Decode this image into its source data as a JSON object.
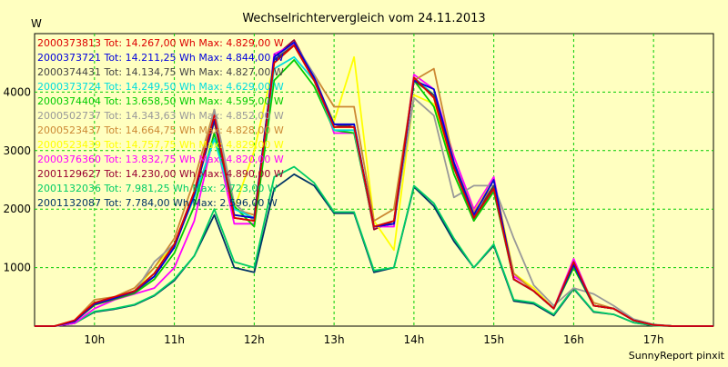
{
  "chart_data": {
    "type": "line",
    "title": "Wechselrichtervergleich vom 24.11.2013",
    "ylabel": "W",
    "credit": "SunnyReport pinxit",
    "ylim": [
      0,
      5000
    ],
    "xlim": [
      9.25,
      17.75
    ],
    "grid": true,
    "background": "#ffffc0",
    "grid_color": "#00cc00",
    "y_ticks": [
      1000,
      2000,
      3000,
      4000
    ],
    "x_ticks": [
      {
        "value": 10,
        "label": "10h"
      },
      {
        "value": 11,
        "label": "11h"
      },
      {
        "value": 12,
        "label": "12h"
      },
      {
        "value": 13,
        "label": "13h"
      },
      {
        "value": 14,
        "label": "14h"
      },
      {
        "value": 15,
        "label": "15h"
      },
      {
        "value": 16,
        "label": "16h"
      },
      {
        "value": 17,
        "label": "17h"
      }
    ],
    "x": [
      9.25,
      9.5,
      9.75,
      10.0,
      10.25,
      10.5,
      10.75,
      11.0,
      11.25,
      11.5,
      11.75,
      12.0,
      12.25,
      12.5,
      12.75,
      13.0,
      13.25,
      13.5,
      13.75,
      14.0,
      14.25,
      14.5,
      14.75,
      15.0,
      15.25,
      15.5,
      15.75,
      16.0,
      16.25,
      16.5,
      16.75,
      17.0,
      17.25,
      17.5,
      17.75
    ],
    "series": [
      {
        "name": "2000373813",
        "legend": "2000373813 Tot: 14.267,00 Wh Max: 4.829,00 W",
        "color": "#dd0000",
        "values": [
          0,
          0,
          100,
          400,
          500,
          600,
          900,
          1400,
          2300,
          3600,
          1850,
          1800,
          4500,
          4800,
          4200,
          3400,
          3400,
          1700,
          1800,
          4250,
          3900,
          2700,
          1850,
          2350,
          800,
          600,
          300,
          1100,
          350,
          300,
          100,
          20,
          0,
          0,
          0
        ]
      },
      {
        "name": "2000373721",
        "legend": "2000373721 Tot: 14.211,25 Wh Max: 4.844,00 W",
        "color": "#0000dd",
        "values": [
          0,
          0,
          80,
          380,
          480,
          600,
          850,
          1350,
          2250,
          3550,
          1900,
          1850,
          4600,
          4850,
          4250,
          3450,
          3450,
          1700,
          1750,
          4200,
          4050,
          2800,
          1900,
          2500,
          800,
          600,
          300,
          1050,
          350,
          300,
          100,
          20,
          0,
          0,
          0
        ]
      },
      {
        "name": "2000374431",
        "legend": "2000374431 Tot: 14.134,75 Wh Max: 4.827,00 W",
        "color": "#444444",
        "values": [
          0,
          0,
          80,
          370,
          470,
          580,
          850,
          1350,
          2250,
          3500,
          1900,
          1850,
          4550,
          4800,
          4200,
          3400,
          3450,
          1700,
          1750,
          4200,
          3950,
          2750,
          1850,
          2400,
          800,
          600,
          300,
          1050,
          350,
          300,
          100,
          20,
          0,
          0,
          0
        ]
      },
      {
        "name": "2000373724",
        "legend": "2000373724 Tot: 14.249,50 Wh Max: 4.629,00 W",
        "color": "#00dddd",
        "values": [
          0,
          0,
          90,
          390,
          490,
          600,
          900,
          1400,
          2200,
          3200,
          2000,
          1850,
          4400,
          4600,
          4200,
          3350,
          3350,
          1700,
          1800,
          4250,
          3950,
          2700,
          1850,
          2350,
          800,
          600,
          300,
          1100,
          350,
          300,
          100,
          20,
          0,
          0,
          0
        ]
      },
      {
        "name": "2000374404",
        "legend": "2000374404 Tot: 13.658,50 Wh Max: 4.595,00 W",
        "color": "#00cc00",
        "values": [
          0,
          0,
          80,
          360,
          460,
          560,
          800,
          1250,
          2050,
          3300,
          2050,
          1700,
          4200,
          4550,
          4100,
          3350,
          3300,
          1700,
          1750,
          4200,
          3750,
          2600,
          1800,
          2300,
          800,
          600,
          300,
          1000,
          350,
          300,
          100,
          20,
          0,
          0,
          0
        ]
      },
      {
        "name": "2000502737",
        "legend": "2000502737 Tot: 14.343,63 Wh Max: 4.852,00 W",
        "color": "#999999",
        "values": [
          0,
          0,
          80,
          370,
          470,
          580,
          1100,
          1400,
          2200,
          3700,
          2100,
          1800,
          4550,
          4850,
          4300,
          3400,
          3450,
          1700,
          1750,
          3900,
          3600,
          2200,
          2400,
          2400,
          1500,
          700,
          350,
          650,
          550,
          350,
          120,
          30,
          0,
          0,
          0
        ]
      },
      {
        "name": "2000523437",
        "legend": "2000523437 Tot: 14.664,75 Wh Max: 4.828,00 W",
        "color": "#cc8833",
        "values": [
          0,
          0,
          100,
          450,
          500,
          650,
          1000,
          1500,
          2500,
          3700,
          2000,
          1900,
          4500,
          4800,
          4300,
          3750,
          3750,
          1800,
          2000,
          4200,
          4400,
          2800,
          1950,
          2400,
          900,
          600,
          300,
          1050,
          400,
          300,
          100,
          20,
          0,
          0,
          0
        ]
      },
      {
        "name": "2000523439",
        "legend": "2000523439 Tot: 14.757,75 Wh Max: 4.829,00 W",
        "color": "#ffff00",
        "values": [
          0,
          0,
          80,
          380,
          480,
          600,
          1000,
          1400,
          2200,
          3600,
          2000,
          3000,
          4500,
          4800,
          4200,
          3500,
          4600,
          1800,
          1300,
          3950,
          3800,
          2700,
          1950,
          2500,
          900,
          650,
          300,
          1000,
          350,
          300,
          100,
          20,
          0,
          0,
          0
        ]
      },
      {
        "name": "2000376360",
        "legend": "2000376360 Tot: 13.832,75 Wh Max: 4.820,00 W",
        "color": "#ff00ff",
        "values": [
          0,
          0,
          50,
          300,
          450,
          550,
          650,
          1000,
          1800,
          3300,
          1750,
          1750,
          4650,
          4820,
          4300,
          3300,
          3300,
          1700,
          1700,
          4300,
          4050,
          2900,
          2000,
          2550,
          850,
          650,
          300,
          1150,
          350,
          300,
          100,
          20,
          0,
          0,
          0
        ]
      },
      {
        "name": "2001129627",
        "legend": "2001129627 Tot: 14.230,00 Wh Max: 4.890,00 W",
        "color": "#990033",
        "values": [
          0,
          0,
          80,
          380,
          480,
          600,
          900,
          1400,
          2300,
          3650,
          1850,
          1800,
          4600,
          4890,
          4250,
          3450,
          3400,
          1650,
          1800,
          4200,
          3950,
          2750,
          1800,
          2400,
          800,
          600,
          300,
          1050,
          350,
          300,
          100,
          20,
          0,
          0,
          0
        ]
      },
      {
        "name": "2001132036",
        "legend": "2001132036 Tot: 7.981,25 Wh Max: 2.723,00 W",
        "color": "#00cc66",
        "values": [
          0,
          0,
          50,
          250,
          300,
          370,
          530,
          800,
          1200,
          2000,
          1100,
          1000,
          2550,
          2723,
          2450,
          1950,
          1950,
          950,
          1000,
          2400,
          2100,
          1500,
          1000,
          1400,
          450,
          400,
          200,
          650,
          250,
          200,
          60,
          10,
          0,
          0,
          0
        ]
      },
      {
        "name": "2001132087",
        "legend": "2001132087 Tot: 7.784,00 Wh Max: 2.596,00 W",
        "color": "#003366",
        "values": [
          0,
          0,
          50,
          240,
          290,
          360,
          520,
          780,
          1200,
          1900,
          1000,
          920,
          2350,
          2596,
          2400,
          1930,
          1930,
          920,
          1000,
          2380,
          2050,
          1450,
          1000,
          1380,
          430,
          380,
          180,
          640,
          240,
          200,
          60,
          10,
          0,
          0,
          0
        ]
      }
    ]
  }
}
